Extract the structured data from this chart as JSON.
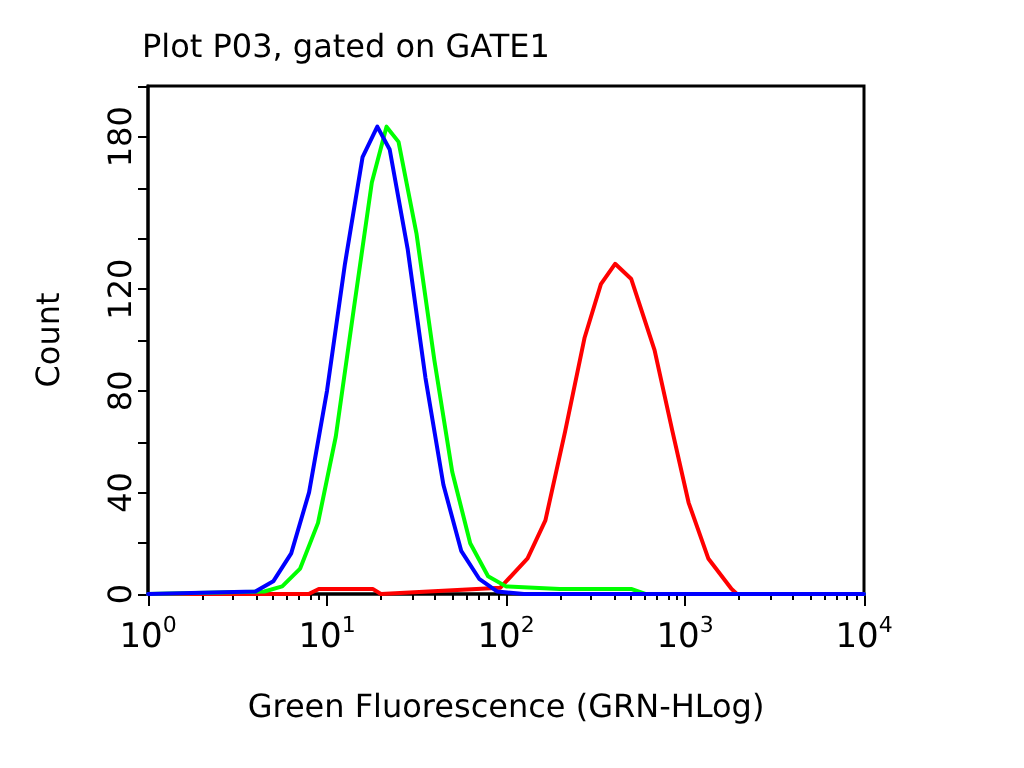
{
  "chart_data": {
    "type": "line",
    "title": "Plot P03, gated on GATE1",
    "xlabel": "Green Fluorescence (GRN-HLog)",
    "ylabel": "Count",
    "log": "x",
    "xlim": [
      1,
      10000
    ],
    "ylim": [
      0,
      200
    ],
    "xticks": [
      {
        "value": 1,
        "label": "10$^{0}$"
      },
      {
        "value": 10,
        "label": "10$^{1}$"
      },
      {
        "value": 100,
        "label": "10$^{2}$"
      },
      {
        "value": 1000,
        "label": "10$^{3}$"
      },
      {
        "value": 10000,
        "label": "10$^{4}$"
      }
    ],
    "yticks": [
      0,
      {
        "value": 20,
        "label": null
      },
      40,
      {
        "value": 60,
        "label": null
      },
      80,
      {
        "value": 100,
        "label": null
      },
      120,
      {
        "value": 140,
        "label": null
      },
      {
        "value": 160,
        "label": null
      },
      180,
      {
        "value": 200,
        "label": null
      }
    ],
    "grid": false,
    "marker": "none",
    "line_style": "solid",
    "series": [
      {
        "color": "#ff0000",
        "x": [
          1,
          7.9,
          9,
          18,
          20,
          93,
          132,
          166,
          214,
          275,
          339,
          407,
          501,
          676,
          851,
          1047,
          1349,
          1820,
          1950,
          10000
        ],
        "values": [
          0,
          0,
          2,
          2,
          0,
          2.5,
          14,
          29,
          64,
          101,
          122,
          130,
          124,
          96,
          64,
          36,
          14,
          2,
          0,
          0
        ]
      },
      {
        "color": "#00ff00",
        "x": [
          1,
          4.47,
          5.62,
          7.08,
          8.91,
          11.2,
          14.1,
          17.8,
          21.5,
          25.1,
          31.6,
          39.8,
          50.1,
          63.1,
          79.4,
          100,
          200,
          500,
          600,
          10000
        ],
        "values": [
          0,
          1,
          3,
          10,
          28,
          62,
          112,
          162,
          184,
          178,
          142,
          92,
          48,
          20,
          7,
          3,
          2,
          2,
          0,
          0
        ]
      },
      {
        "color": "#0000ff",
        "x": [
          1,
          3.98,
          5.01,
          6.31,
          7.94,
          10,
          12.6,
          15.8,
          19.1,
          22.4,
          28.2,
          35.5,
          44.7,
          56.2,
          70.8,
          89.1,
          126,
          10000
        ],
        "values": [
          0,
          1,
          5,
          16,
          40,
          80,
          130,
          172,
          184,
          175,
          136,
          85,
          43,
          17,
          6,
          1,
          0,
          0
        ]
      }
    ]
  }
}
